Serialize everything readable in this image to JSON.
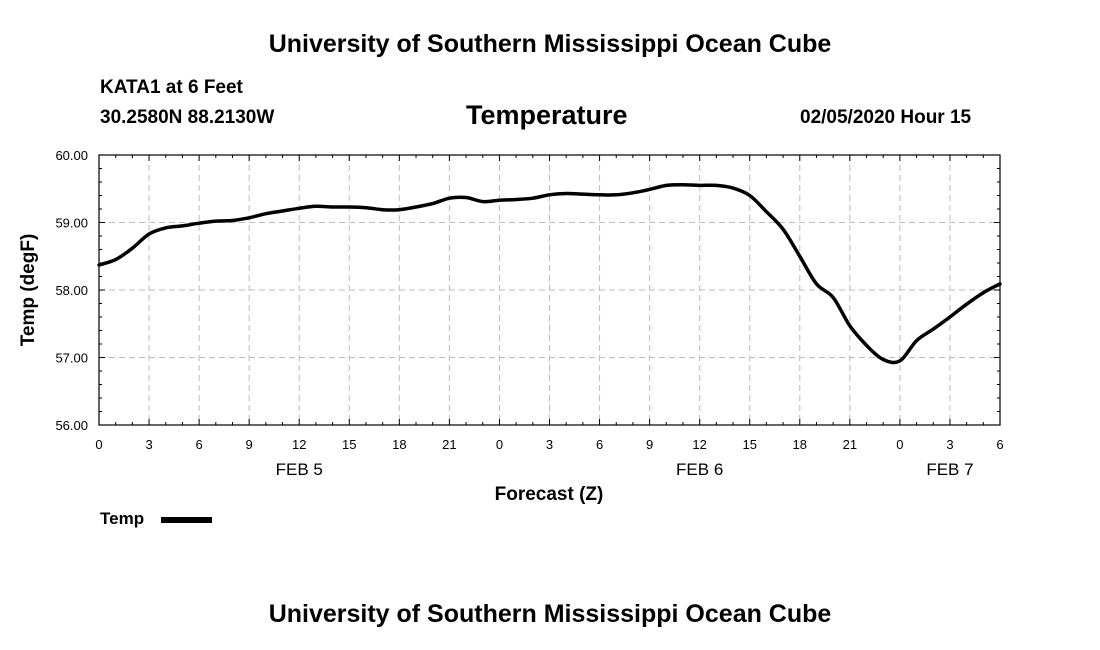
{
  "header": {
    "top_title": "University of Southern Mississippi Ocean Cube",
    "station": "KATA1 at 6 Feet",
    "coords": "30.2580N 88.2130W",
    "timestamp": "02/05/2020 Hour 15"
  },
  "footer": {
    "bottom_title": "University of Southern Mississippi Ocean Cube"
  },
  "legend": {
    "label": "Temp",
    "color": "#000000"
  },
  "chart_data": {
    "type": "line",
    "title": "Temperature",
    "xlabel": "Forecast (Z)",
    "ylabel": "Temp (degF)",
    "xlim": [
      0,
      54
    ],
    "ylim": [
      56,
      60
    ],
    "yticks": [
      "56.00",
      "57.00",
      "58.00",
      "59.00",
      "60.00"
    ],
    "x_ticks": [
      {
        "x": 0,
        "label": "0"
      },
      {
        "x": 3,
        "label": "3"
      },
      {
        "x": 6,
        "label": "6"
      },
      {
        "x": 9,
        "label": "9"
      },
      {
        "x": 12,
        "label": "12"
      },
      {
        "x": 15,
        "label": "15"
      },
      {
        "x": 18,
        "label": "18"
      },
      {
        "x": 21,
        "label": "21"
      },
      {
        "x": 24,
        "label": "0"
      },
      {
        "x": 27,
        "label": "3"
      },
      {
        "x": 30,
        "label": "6"
      },
      {
        "x": 33,
        "label": "9"
      },
      {
        "x": 36,
        "label": "12"
      },
      {
        "x": 39,
        "label": "15"
      },
      {
        "x": 42,
        "label": "18"
      },
      {
        "x": 45,
        "label": "21"
      },
      {
        "x": 48,
        "label": "0"
      },
      {
        "x": 51,
        "label": "3"
      },
      {
        "x": 54,
        "label": "6"
      }
    ],
    "day_labels": [
      {
        "x": 12,
        "label": "FEB 5"
      },
      {
        "x": 36,
        "label": "FEB 6"
      },
      {
        "x": 51,
        "label": "FEB 7"
      }
    ],
    "grid": true,
    "legend_position": "bottom-left",
    "series": [
      {
        "name": "Temp",
        "color": "#000000",
        "x": [
          0,
          1,
          2,
          3,
          4,
          5,
          6,
          7,
          8,
          9,
          10,
          11,
          12,
          13,
          14,
          15,
          16,
          17,
          18,
          19,
          20,
          21,
          22,
          23,
          24,
          25,
          26,
          27,
          28,
          29,
          30,
          31,
          32,
          33,
          34,
          35,
          36,
          37,
          38,
          39,
          40,
          41,
          42,
          43,
          44,
          45,
          46,
          47,
          48,
          49,
          50,
          51,
          52,
          53,
          54
        ],
        "y": [
          58.37,
          58.45,
          58.62,
          58.83,
          58.92,
          58.95,
          58.99,
          59.02,
          59.03,
          59.07,
          59.13,
          59.17,
          59.21,
          59.24,
          59.23,
          59.23,
          59.22,
          59.19,
          59.19,
          59.23,
          59.28,
          59.36,
          59.37,
          59.31,
          59.33,
          59.34,
          59.36,
          59.41,
          59.43,
          59.42,
          59.41,
          59.41,
          59.44,
          59.49,
          59.55,
          59.56,
          59.55,
          59.55,
          59.51,
          59.4,
          59.16,
          58.9,
          58.5,
          58.09,
          57.89,
          57.47,
          57.18,
          56.97,
          56.95,
          57.25,
          57.42,
          57.6,
          57.79,
          57.96,
          58.09
        ]
      }
    ]
  }
}
